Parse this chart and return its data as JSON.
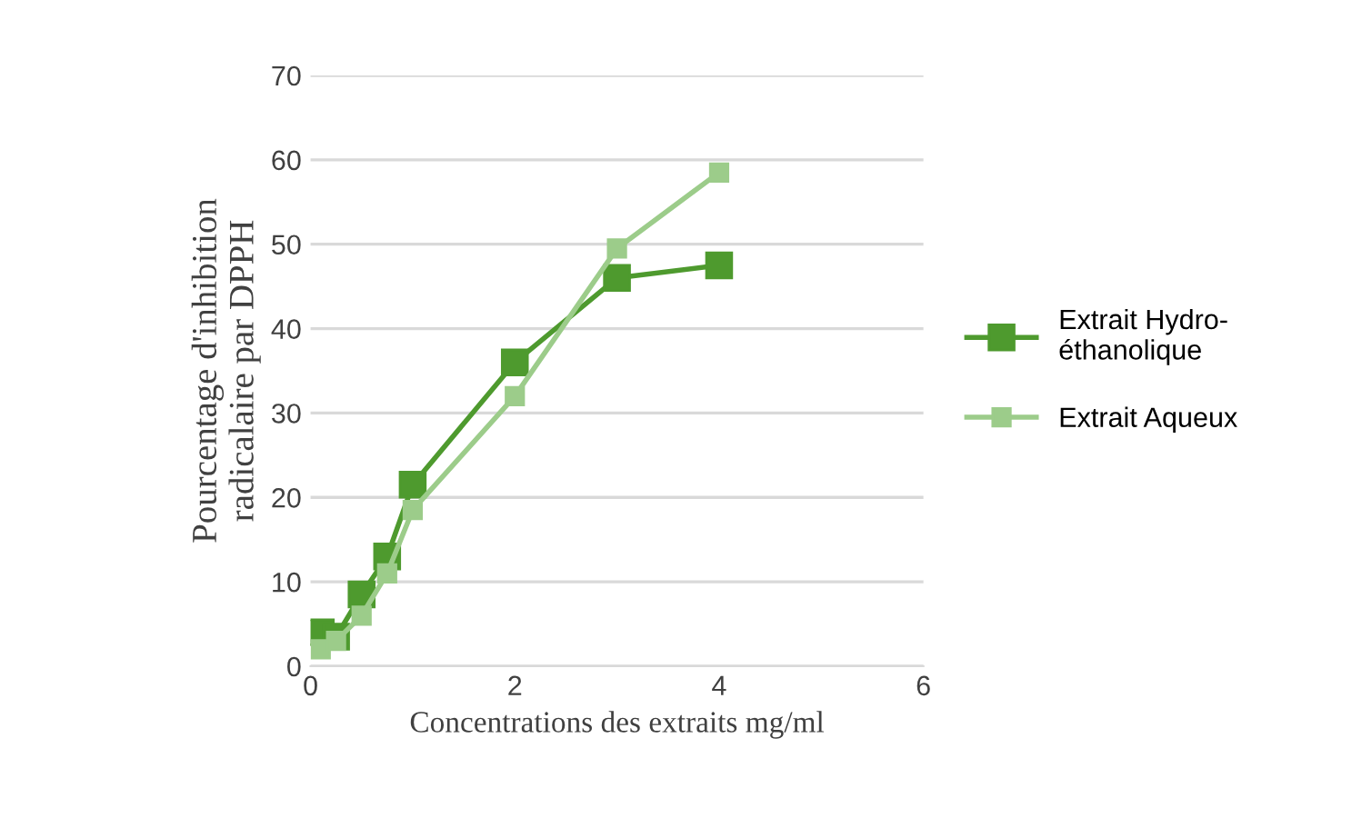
{
  "chart_data": {
    "type": "line",
    "xlabel": "Concentrations des extraits mg/ml",
    "ylabel": "Pourcentage d'inhibition\nradicalaire par DPPH",
    "x": [
      0.1,
      0.25,
      0.5,
      0.75,
      1,
      2,
      3,
      4
    ],
    "series": [
      {
        "name": "Extrait Hydro-\néthanolique",
        "color": "#4e9a2e",
        "values": [
          4,
          3.5,
          8.5,
          13,
          21.5,
          36,
          46,
          47.5
        ]
      },
      {
        "name": "Extrait Aqueux",
        "color": "#9ccc8a",
        "values": [
          2,
          3,
          6,
          11,
          18.5,
          32,
          49.5,
          58.5
        ]
      }
    ],
    "xlim": [
      0,
      6
    ],
    "xticks": [
      0,
      2,
      4,
      6
    ],
    "ylim": [
      0,
      70
    ],
    "yticks": [
      0,
      10,
      20,
      30,
      40,
      50,
      60,
      70
    ],
    "grid": "y",
    "legend": "right",
    "marker": "square",
    "line_style": "solid"
  }
}
